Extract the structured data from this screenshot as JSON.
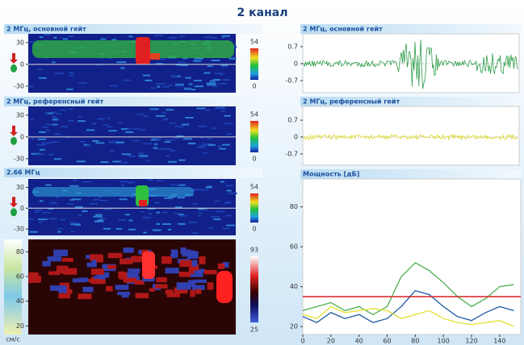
{
  "title": "2 канал",
  "left_panels": [
    {
      "title": "2 МГц, основной гейт",
      "yticks": [
        30,
        0,
        -30
      ],
      "ylim": [
        -39,
        42
      ],
      "colorbar": [
        54,
        0
      ]
    },
    {
      "title": "2 МГц, референсный гейт",
      "yticks": [
        30,
        0,
        -30
      ],
      "ylim": [
        -39,
        42
      ],
      "colorbar": [
        54,
        0
      ]
    },
    {
      "title": "2.66 МГц",
      "yticks": [
        30,
        0,
        -30
      ],
      "ylim": [
        -39,
        42
      ],
      "colorbar": [
        54,
        0
      ]
    }
  ],
  "doppler": {
    "unit": "см/с",
    "yticks": [
      80,
      60,
      40,
      20
    ],
    "ylim": [
      13,
      90
    ],
    "colorbar": [
      93,
      25
    ]
  },
  "right_panels": [
    {
      "title": "2 МГц, основной гейт",
      "yticks": [
        0.7,
        0,
        -0.7
      ],
      "ylim": [
        -1.2,
        1.23
      ]
    },
    {
      "title": "2 МГц, референсный гейт",
      "yticks": [
        0.7,
        0,
        -0.7
      ],
      "ylim": [
        -1.17,
        1.27
      ]
    }
  ],
  "chart_data": {
    "type": "line",
    "title": "Мощность [дБ]",
    "x": [
      0,
      10,
      20,
      30,
      40,
      50,
      60,
      70,
      80,
      90,
      100,
      110,
      120,
      130,
      140,
      150
    ],
    "xlim": [
      0,
      155
    ],
    "xticks": [
      0,
      20,
      40,
      60,
      80,
      100,
      120,
      140
    ],
    "ylim": [
      16,
      94
    ],
    "yticks": [
      20,
      40,
      60,
      80
    ],
    "series": [
      {
        "color": "#4caf50",
        "values": [
          28,
          30,
          32,
          28,
          30,
          26,
          30,
          45,
          52,
          48,
          42,
          35,
          30,
          34,
          40,
          41
        ]
      },
      {
        "color": "#1f5aa6",
        "values": [
          25,
          22,
          27,
          24,
          26,
          22,
          24,
          30,
          38,
          36,
          30,
          25,
          23,
          27,
          30,
          28
        ]
      },
      {
        "color": "#e0e030",
        "values": [
          26,
          24,
          30,
          27,
          28,
          29,
          28,
          24,
          26,
          28,
          24,
          22,
          21,
          22,
          23,
          20
        ]
      }
    ],
    "reference_line": {
      "value": 35,
      "color": "#d62020"
    }
  }
}
